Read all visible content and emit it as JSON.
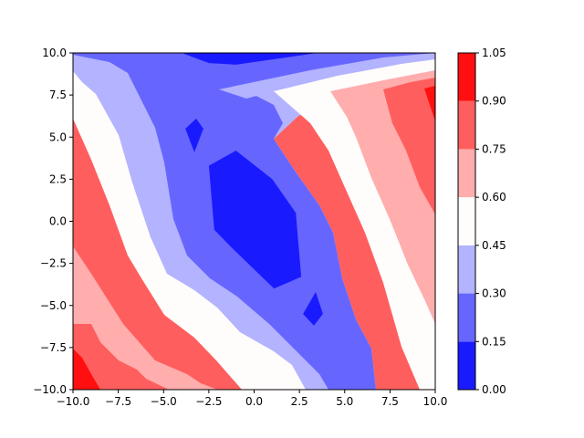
{
  "chart_data": {
    "type": "heatmap",
    "subtype": "filled-contour",
    "title": "",
    "xlabel": "",
    "ylabel": "",
    "xlim": [
      -10,
      10
    ],
    "ylim": [
      -10,
      10
    ],
    "x_ticks": [
      -10,
      -7.5,
      -5,
      -2.5,
      0,
      2.5,
      5,
      7.5,
      10
    ],
    "y_ticks": [
      -10,
      -7.5,
      -5,
      -2.5,
      0,
      2.5,
      5,
      7.5,
      10
    ],
    "x_tick_labels": [
      "−10.0",
      "−7.5",
      "−5.0",
      "−2.5",
      "0.0",
      "2.5",
      "5.0",
      "7.5",
      "10.0"
    ],
    "y_tick_labels": [
      "−10.0",
      "−7.5",
      "−5.0",
      "−2.5",
      "0.0",
      "2.5",
      "5.0",
      "7.5",
      "10.0"
    ],
    "grid": false,
    "colormap": "bwr",
    "levels": [
      0.0,
      0.15,
      0.3,
      0.45,
      0.6,
      0.75,
      0.9,
      1.05
    ],
    "level_colors": [
      "#1a1aff",
      "#6666ff",
      "#b3b3ff",
      "#fffcfc",
      "#ffadad",
      "#ff5e5e",
      "#ff0f0f"
    ],
    "colorbar": {
      "position": "right",
      "tick_labels": [
        "0.00",
        "0.15",
        "0.30",
        "0.45",
        "0.60",
        "0.75",
        "0.90",
        "1.05"
      ]
    },
    "regions": [
      {
        "name": "lowest-minimum",
        "level_index": 0,
        "polygon": [
          [
            -2.5,
            3.3
          ],
          [
            -1,
            4.2
          ],
          [
            1,
            2.5
          ],
          [
            2.3,
            0.5
          ],
          [
            2.6,
            -3.3
          ],
          [
            1.1,
            -4
          ],
          [
            -1.3,
            -1.5
          ],
          [
            -2.2,
            -0.5
          ]
        ]
      },
      {
        "name": "lower-left-island",
        "level_index": 0,
        "polygon": [
          [
            -3.8,
            5.5
          ],
          [
            -3.2,
            6.1
          ],
          [
            -2.8,
            5.5
          ],
          [
            -3.3,
            4.1
          ]
        ]
      },
      {
        "name": "lower-right-island",
        "level_index": 0,
        "polygon": [
          [
            2.7,
            -5.5
          ],
          [
            3.4,
            -4.2
          ],
          [
            3.8,
            -5.5
          ],
          [
            3.3,
            -6.2
          ]
        ]
      },
      {
        "name": "top-edge-minimum",
        "level_index": 0,
        "polygon": [
          [
            -4,
            10
          ],
          [
            3.5,
            10
          ],
          [
            -1,
            9.3
          ],
          [
            -2.5,
            9.4
          ]
        ]
      }
    ]
  }
}
